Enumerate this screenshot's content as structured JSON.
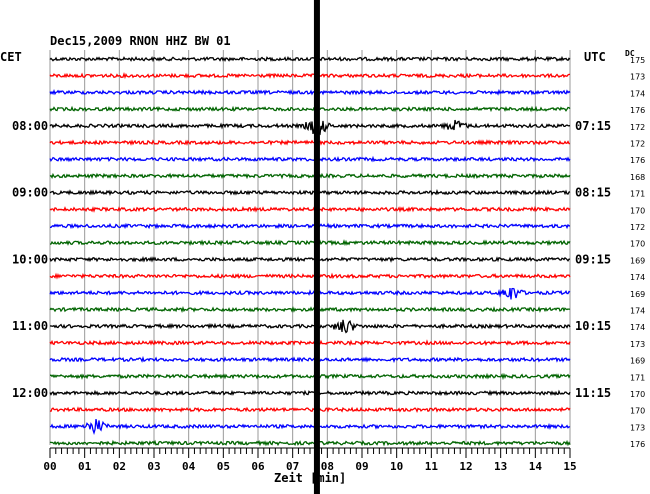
{
  "header": {
    "title": "Dec15,2009   RNON HHZ BW 01",
    "left_label": "CET",
    "right_label": "UTC",
    "dc_label": "DC"
  },
  "chart_data": {
    "type": "line",
    "title": "Dec15,2009   RNON HHZ BW 01",
    "xlabel": "Zeit [min]",
    "xlim": [
      0,
      15
    ],
    "x_ticks": [
      "00",
      "01",
      "02",
      "03",
      "04",
      "05",
      "06",
      "07",
      "08",
      "09",
      "10",
      "11",
      "12",
      "13",
      "14",
      "15"
    ],
    "traces_per_hour": 4,
    "trace_colors": [
      "#000000",
      "#ff0000",
      "#0000ff",
      "#006400"
    ],
    "left_time_labels": [
      {
        "label": "08:00",
        "trace_index": 4
      },
      {
        "label": "09:00",
        "trace_index": 8
      },
      {
        "label": "10:00",
        "trace_index": 12
      },
      {
        "label": "11:00",
        "trace_index": 16
      },
      {
        "label": "12:00",
        "trace_index": 20
      }
    ],
    "right_time_labels": [
      {
        "label": "07:15",
        "trace_index": 4
      },
      {
        "label": "08:15",
        "trace_index": 8
      },
      {
        "label": "09:15",
        "trace_index": 12
      },
      {
        "label": "10:15",
        "trace_index": 16
      },
      {
        "label": "11:15",
        "trace_index": 20
      }
    ],
    "dc_values": [
      175,
      173,
      174,
      176,
      172,
      172,
      176,
      168,
      171,
      170,
      172,
      170,
      169,
      174,
      169,
      174,
      174,
      173,
      169,
      171,
      170,
      170,
      173,
      176
    ],
    "events": [
      {
        "trace_index": 4,
        "minute": 7.7,
        "amplitude": "large"
      },
      {
        "trace_index": 4,
        "minute": 11.7,
        "amplitude": "small"
      },
      {
        "trace_index": 14,
        "minute": 13.3,
        "amplitude": "medium"
      },
      {
        "trace_index": 16,
        "minute": 8.5,
        "amplitude": "medium"
      },
      {
        "trace_index": 22,
        "minute": 1.3,
        "amplitude": "medium"
      }
    ],
    "saturated_column_minute": 7.7,
    "grid": true
  }
}
